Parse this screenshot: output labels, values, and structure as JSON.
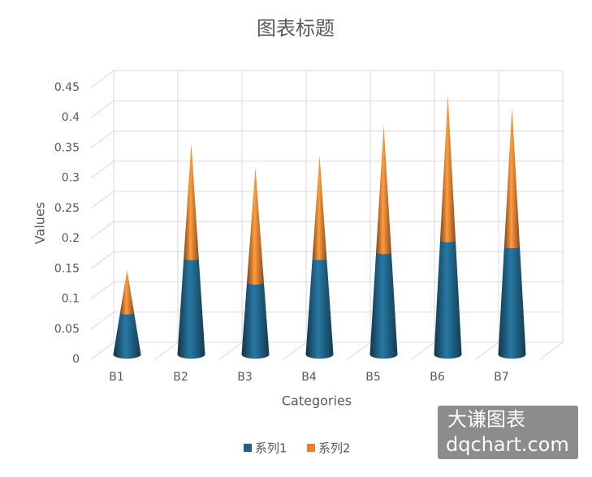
{
  "chart_data": {
    "type": "cone-stacked",
    "title": "图表标题",
    "x_label": "Categories",
    "y_label": "Values",
    "categories": [
      "B1",
      "B2",
      "B3",
      "B4",
      "B5",
      "B6",
      "B7"
    ],
    "series": [
      {
        "name": "系列1",
        "color": "#1f6184",
        "values": [
          0.07,
          0.16,
          0.12,
          0.16,
          0.17,
          0.19,
          0.18
        ]
      },
      {
        "name": "系列2",
        "color": "#ed7d31",
        "values": [
          0.07,
          0.19,
          0.19,
          0.17,
          0.21,
          0.24,
          0.23
        ]
      }
    ],
    "ylim": [
      0,
      0.45
    ],
    "yticks": [
      0,
      0.05,
      0.1,
      0.15,
      0.2,
      0.25,
      0.3,
      0.35,
      0.4,
      0.45
    ],
    "grid": true,
    "legend": "bottom"
  },
  "watermark": {
    "line1": "大谦图表",
    "line2": "dqchart.com"
  }
}
